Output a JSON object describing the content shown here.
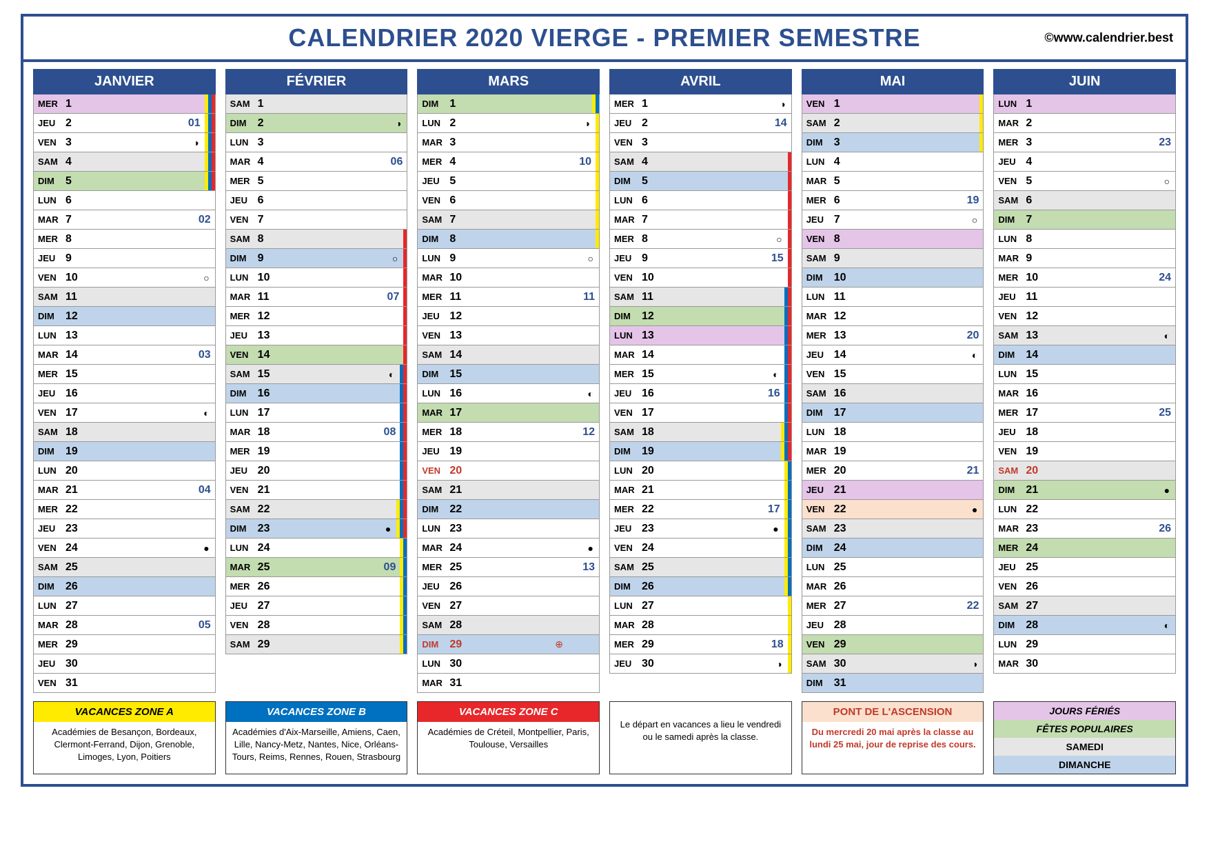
{
  "title": "CALENDRIER 2020 VIERGE - PREMIER SEMESTRE",
  "watermark": "©www.calendrier.best",
  "colors": {
    "frame": "#2d4f8f",
    "sat": "#e6e6e6",
    "sun": "#bfd4ea",
    "ferie": "#e4c5e8",
    "fete": "#c3dcb0",
    "pont": "#fbe0cd",
    "zoneA": "#ffeb00",
    "zoneB": "#0070c0",
    "zoneC": "#e8272a"
  },
  "months": [
    {
      "name": "JANVIER",
      "days": [
        {
          "dw": "MER",
          "n": 1,
          "bg": "ferie",
          "zones": [
            "a",
            "b",
            "c"
          ]
        },
        {
          "dw": "JEU",
          "n": 2,
          "wk": "01",
          "zones": [
            "a",
            "b",
            "c"
          ]
        },
        {
          "dw": "VEN",
          "n": 3,
          "moon": "◑",
          "zones": [
            "a",
            "b",
            "c"
          ]
        },
        {
          "dw": "SAM",
          "n": 4,
          "bg": "sat",
          "zones": [
            "a",
            "b",
            "c"
          ]
        },
        {
          "dw": "DIM",
          "n": 5,
          "bg": "fete",
          "zones": [
            "a",
            "b",
            "c"
          ]
        },
        {
          "dw": "LUN",
          "n": 6
        },
        {
          "dw": "MAR",
          "n": 7,
          "wk": "02"
        },
        {
          "dw": "MER",
          "n": 8
        },
        {
          "dw": "JEU",
          "n": 9
        },
        {
          "dw": "VEN",
          "n": 10,
          "moon": "○"
        },
        {
          "dw": "SAM",
          "n": 11,
          "bg": "sat"
        },
        {
          "dw": "DIM",
          "n": 12,
          "bg": "sun"
        },
        {
          "dw": "LUN",
          "n": 13
        },
        {
          "dw": "MAR",
          "n": 14,
          "wk": "03"
        },
        {
          "dw": "MER",
          "n": 15
        },
        {
          "dw": "JEU",
          "n": 16
        },
        {
          "dw": "VEN",
          "n": 17,
          "moon": "◐"
        },
        {
          "dw": "SAM",
          "n": 18,
          "bg": "sat"
        },
        {
          "dw": "DIM",
          "n": 19,
          "bg": "sun"
        },
        {
          "dw": "LUN",
          "n": 20
        },
        {
          "dw": "MAR",
          "n": 21,
          "wk": "04"
        },
        {
          "dw": "MER",
          "n": 22
        },
        {
          "dw": "JEU",
          "n": 23
        },
        {
          "dw": "VEN",
          "n": 24,
          "moon": "●"
        },
        {
          "dw": "SAM",
          "n": 25,
          "bg": "sat"
        },
        {
          "dw": "DIM",
          "n": 26,
          "bg": "sun"
        },
        {
          "dw": "LUN",
          "n": 27
        },
        {
          "dw": "MAR",
          "n": 28,
          "wk": "05"
        },
        {
          "dw": "MER",
          "n": 29
        },
        {
          "dw": "JEU",
          "n": 30
        },
        {
          "dw": "VEN",
          "n": 31
        }
      ]
    },
    {
      "name": "FÉVRIER",
      "days": [
        {
          "dw": "SAM",
          "n": 1,
          "bg": "sat"
        },
        {
          "dw": "DIM",
          "n": 2,
          "bg": "fete",
          "moon": "◑"
        },
        {
          "dw": "LUN",
          "n": 3
        },
        {
          "dw": "MAR",
          "n": 4,
          "wk": "06"
        },
        {
          "dw": "MER",
          "n": 5
        },
        {
          "dw": "JEU",
          "n": 6
        },
        {
          "dw": "VEN",
          "n": 7
        },
        {
          "dw": "SAM",
          "n": 8,
          "bg": "sat",
          "zones": [
            "c"
          ]
        },
        {
          "dw": "DIM",
          "n": 9,
          "bg": "sun",
          "moon": "○",
          "zones": [
            "c"
          ]
        },
        {
          "dw": "LUN",
          "n": 10,
          "zones": [
            "c"
          ]
        },
        {
          "dw": "MAR",
          "n": 11,
          "wk": "07",
          "zones": [
            "c"
          ]
        },
        {
          "dw": "MER",
          "n": 12,
          "zones": [
            "c"
          ]
        },
        {
          "dw": "JEU",
          "n": 13,
          "zones": [
            "c"
          ]
        },
        {
          "dw": "VEN",
          "n": 14,
          "bg": "fete",
          "zones": [
            "c"
          ]
        },
        {
          "dw": "SAM",
          "n": 15,
          "bg": "sat",
          "moon": "◐",
          "zones": [
            "b",
            "c"
          ]
        },
        {
          "dw": "DIM",
          "n": 16,
          "bg": "sun",
          "zones": [
            "b",
            "c"
          ]
        },
        {
          "dw": "LUN",
          "n": 17,
          "zones": [
            "b",
            "c"
          ]
        },
        {
          "dw": "MAR",
          "n": 18,
          "wk": "08",
          "zones": [
            "b",
            "c"
          ]
        },
        {
          "dw": "MER",
          "n": 19,
          "zones": [
            "b",
            "c"
          ]
        },
        {
          "dw": "JEU",
          "n": 20,
          "zones": [
            "b",
            "c"
          ]
        },
        {
          "dw": "VEN",
          "n": 21,
          "zones": [
            "b",
            "c"
          ]
        },
        {
          "dw": "SAM",
          "n": 22,
          "bg": "sat",
          "zones": [
            "a",
            "b",
            "c"
          ]
        },
        {
          "dw": "DIM",
          "n": 23,
          "bg": "sun",
          "moon": "●",
          "zones": [
            "a",
            "b",
            "c"
          ]
        },
        {
          "dw": "LUN",
          "n": 24,
          "zones": [
            "a",
            "b"
          ]
        },
        {
          "dw": "MAR",
          "n": 25,
          "bg": "fete",
          "wk": "09",
          "zones": [
            "a",
            "b"
          ]
        },
        {
          "dw": "MER",
          "n": 26,
          "zones": [
            "a",
            "b"
          ]
        },
        {
          "dw": "JEU",
          "n": 27,
          "zones": [
            "a",
            "b"
          ]
        },
        {
          "dw": "VEN",
          "n": 28,
          "zones": [
            "a",
            "b"
          ]
        },
        {
          "dw": "SAM",
          "n": 29,
          "bg": "sat",
          "zones": [
            "a",
            "b"
          ]
        }
      ]
    },
    {
      "name": "MARS",
      "days": [
        {
          "dw": "DIM",
          "n": 1,
          "bg": "fete",
          "zones": [
            "a",
            "b"
          ]
        },
        {
          "dw": "LUN",
          "n": 2,
          "moon": "◑",
          "zones": [
            "a"
          ]
        },
        {
          "dw": "MAR",
          "n": 3,
          "zones": [
            "a"
          ]
        },
        {
          "dw": "MER",
          "n": 4,
          "wk": "10",
          "zones": [
            "a"
          ]
        },
        {
          "dw": "JEU",
          "n": 5,
          "zones": [
            "a"
          ]
        },
        {
          "dw": "VEN",
          "n": 6,
          "zones": [
            "a"
          ]
        },
        {
          "dw": "SAM",
          "n": 7,
          "bg": "sat",
          "zones": [
            "a"
          ]
        },
        {
          "dw": "DIM",
          "n": 8,
          "bg": "sun",
          "zones": [
            "a"
          ]
        },
        {
          "dw": "LUN",
          "n": 9,
          "moon": "○"
        },
        {
          "dw": "MAR",
          "n": 10
        },
        {
          "dw": "MER",
          "n": 11,
          "wk": "11"
        },
        {
          "dw": "JEU",
          "n": 12
        },
        {
          "dw": "VEN",
          "n": 13
        },
        {
          "dw": "SAM",
          "n": 14,
          "bg": "sat"
        },
        {
          "dw": "DIM",
          "n": 15,
          "bg": "sun"
        },
        {
          "dw": "LUN",
          "n": 16,
          "moon": "◐"
        },
        {
          "dw": "MAR",
          "n": 17,
          "bg": "fete"
        },
        {
          "dw": "MER",
          "n": 18,
          "wk": "12"
        },
        {
          "dw": "JEU",
          "n": 19
        },
        {
          "dw": "VEN",
          "n": 20,
          "red": true
        },
        {
          "dw": "SAM",
          "n": 21,
          "bg": "sat"
        },
        {
          "dw": "DIM",
          "n": 22,
          "bg": "sun"
        },
        {
          "dw": "LUN",
          "n": 23
        },
        {
          "dw": "MAR",
          "n": 24,
          "moon": "●"
        },
        {
          "dw": "MER",
          "n": 25,
          "wk": "13"
        },
        {
          "dw": "JEU",
          "n": 26
        },
        {
          "dw": "VEN",
          "n": 27
        },
        {
          "dw": "SAM",
          "n": 28,
          "bg": "sat"
        },
        {
          "dw": "DIM",
          "n": 29,
          "bg": "sun",
          "red": true,
          "clock": "⊕"
        },
        {
          "dw": "LUN",
          "n": 30
        },
        {
          "dw": "MAR",
          "n": 31
        }
      ]
    },
    {
      "name": "AVRIL",
      "days": [
        {
          "dw": "MER",
          "n": 1,
          "moon": "◑"
        },
        {
          "dw": "JEU",
          "n": 2,
          "wk": "14"
        },
        {
          "dw": "VEN",
          "n": 3
        },
        {
          "dw": "SAM",
          "n": 4,
          "bg": "sat",
          "zones": [
            "c"
          ]
        },
        {
          "dw": "DIM",
          "n": 5,
          "bg": "sun",
          "zones": [
            "c"
          ]
        },
        {
          "dw": "LUN",
          "n": 6,
          "zones": [
            "c"
          ]
        },
        {
          "dw": "MAR",
          "n": 7,
          "zones": [
            "c"
          ]
        },
        {
          "dw": "MER",
          "n": 8,
          "moon": "○",
          "zones": [
            "c"
          ]
        },
        {
          "dw": "JEU",
          "n": 9,
          "wk": "15",
          "zones": [
            "c"
          ]
        },
        {
          "dw": "VEN",
          "n": 10,
          "zones": [
            "c"
          ]
        },
        {
          "dw": "SAM",
          "n": 11,
          "bg": "sat",
          "zones": [
            "b",
            "c"
          ]
        },
        {
          "dw": "DIM",
          "n": 12,
          "bg": "fete",
          "zones": [
            "b",
            "c"
          ]
        },
        {
          "dw": "LUN",
          "n": 13,
          "bg": "ferie",
          "zones": [
            "b",
            "c"
          ]
        },
        {
          "dw": "MAR",
          "n": 14,
          "zones": [
            "b",
            "c"
          ]
        },
        {
          "dw": "MER",
          "n": 15,
          "moon": "◐",
          "zones": [
            "b",
            "c"
          ]
        },
        {
          "dw": "JEU",
          "n": 16,
          "wk": "16",
          "zones": [
            "b",
            "c"
          ]
        },
        {
          "dw": "VEN",
          "n": 17,
          "zones": [
            "b",
            "c"
          ]
        },
        {
          "dw": "SAM",
          "n": 18,
          "bg": "sat",
          "zones": [
            "a",
            "b",
            "c"
          ]
        },
        {
          "dw": "DIM",
          "n": 19,
          "bg": "sun",
          "zones": [
            "a",
            "b",
            "c"
          ]
        },
        {
          "dw": "LUN",
          "n": 20,
          "zones": [
            "a",
            "b"
          ]
        },
        {
          "dw": "MAR",
          "n": 21,
          "zones": [
            "a",
            "b"
          ]
        },
        {
          "dw": "MER",
          "n": 22,
          "wk": "17",
          "zones": [
            "a",
            "b"
          ]
        },
        {
          "dw": "JEU",
          "n": 23,
          "moon": "●",
          "zones": [
            "a",
            "b"
          ]
        },
        {
          "dw": "VEN",
          "n": 24,
          "zones": [
            "a",
            "b"
          ]
        },
        {
          "dw": "SAM",
          "n": 25,
          "bg": "sat",
          "zones": [
            "a",
            "b"
          ]
        },
        {
          "dw": "DIM",
          "n": 26,
          "bg": "sun",
          "zones": [
            "a",
            "b"
          ]
        },
        {
          "dw": "LUN",
          "n": 27,
          "zones": [
            "a"
          ]
        },
        {
          "dw": "MAR",
          "n": 28,
          "zones": [
            "a"
          ]
        },
        {
          "dw": "MER",
          "n": 29,
          "wk": "18",
          "zones": [
            "a"
          ]
        },
        {
          "dw": "JEU",
          "n": 30,
          "moon": "◑",
          "zones": [
            "a"
          ]
        }
      ]
    },
    {
      "name": "MAI",
      "days": [
        {
          "dw": "VEN",
          "n": 1,
          "bg": "ferie",
          "zones": [
            "a"
          ]
        },
        {
          "dw": "SAM",
          "n": 2,
          "bg": "sat",
          "zones": [
            "a"
          ]
        },
        {
          "dw": "DIM",
          "n": 3,
          "bg": "sun",
          "zones": [
            "a"
          ]
        },
        {
          "dw": "LUN",
          "n": 4
        },
        {
          "dw": "MAR",
          "n": 5
        },
        {
          "dw": "MER",
          "n": 6,
          "wk": "19"
        },
        {
          "dw": "JEU",
          "n": 7,
          "moon": "○"
        },
        {
          "dw": "VEN",
          "n": 8,
          "bg": "ferie"
        },
        {
          "dw": "SAM",
          "n": 9,
          "bg": "sat"
        },
        {
          "dw": "DIM",
          "n": 10,
          "bg": "sun"
        },
        {
          "dw": "LUN",
          "n": 11
        },
        {
          "dw": "MAR",
          "n": 12
        },
        {
          "dw": "MER",
          "n": 13,
          "wk": "20"
        },
        {
          "dw": "JEU",
          "n": 14,
          "moon": "◐"
        },
        {
          "dw": "VEN",
          "n": 15
        },
        {
          "dw": "SAM",
          "n": 16,
          "bg": "sat"
        },
        {
          "dw": "DIM",
          "n": 17,
          "bg": "sun"
        },
        {
          "dw": "LUN",
          "n": 18
        },
        {
          "dw": "MAR",
          "n": 19
        },
        {
          "dw": "MER",
          "n": 20,
          "wk": "21"
        },
        {
          "dw": "JEU",
          "n": 21,
          "bg": "ferie"
        },
        {
          "dw": "VEN",
          "n": 22,
          "bg": "pont",
          "moon": "●"
        },
        {
          "dw": "SAM",
          "n": 23,
          "bg": "sat"
        },
        {
          "dw": "DIM",
          "n": 24,
          "bg": "sun"
        },
        {
          "dw": "LUN",
          "n": 25
        },
        {
          "dw": "MAR",
          "n": 26
        },
        {
          "dw": "MER",
          "n": 27,
          "wk": "22"
        },
        {
          "dw": "JEU",
          "n": 28
        },
        {
          "dw": "VEN",
          "n": 29,
          "bg": "fete"
        },
        {
          "dw": "SAM",
          "n": 30,
          "bg": "sat",
          "moon": "◑"
        },
        {
          "dw": "DIM",
          "n": 31,
          "bg": "sun"
        }
      ]
    },
    {
      "name": "JUIN",
      "days": [
        {
          "dw": "LUN",
          "n": 1,
          "bg": "ferie"
        },
        {
          "dw": "MAR",
          "n": 2
        },
        {
          "dw": "MER",
          "n": 3,
          "wk": "23"
        },
        {
          "dw": "JEU",
          "n": 4
        },
        {
          "dw": "VEN",
          "n": 5,
          "moon": "○"
        },
        {
          "dw": "SAM",
          "n": 6,
          "bg": "sat"
        },
        {
          "dw": "DIM",
          "n": 7,
          "bg": "fete"
        },
        {
          "dw": "LUN",
          "n": 8
        },
        {
          "dw": "MAR",
          "n": 9
        },
        {
          "dw": "MER",
          "n": 10,
          "wk": "24"
        },
        {
          "dw": "JEU",
          "n": 11
        },
        {
          "dw": "VEN",
          "n": 12
        },
        {
          "dw": "SAM",
          "n": 13,
          "bg": "sat",
          "moon": "◐"
        },
        {
          "dw": "DIM",
          "n": 14,
          "bg": "sun"
        },
        {
          "dw": "LUN",
          "n": 15
        },
        {
          "dw": "MAR",
          "n": 16
        },
        {
          "dw": "MER",
          "n": 17,
          "wk": "25"
        },
        {
          "dw": "JEU",
          "n": 18
        },
        {
          "dw": "VEN",
          "n": 19
        },
        {
          "dw": "SAM",
          "n": 20,
          "bg": "sat",
          "red": true
        },
        {
          "dw": "DIM",
          "n": 21,
          "bg": "fete",
          "moon": "●"
        },
        {
          "dw": "LUN",
          "n": 22
        },
        {
          "dw": "MAR",
          "n": 23,
          "wk": "26"
        },
        {
          "dw": "MER",
          "n": 24,
          "bg": "fete"
        },
        {
          "dw": "JEU",
          "n": 25
        },
        {
          "dw": "VEN",
          "n": 26
        },
        {
          "dw": "SAM",
          "n": 27,
          "bg": "sat"
        },
        {
          "dw": "DIM",
          "n": 28,
          "bg": "sun",
          "moon": "◐"
        },
        {
          "dw": "LUN",
          "n": 29
        },
        {
          "dw": "MAR",
          "n": 30
        }
      ]
    }
  ],
  "legend": {
    "zoneA": {
      "title": "VACANCES ZONE A",
      "body": "Académies de Besançon, Bordeaux, Clermont-Ferrand, Dijon, Grenoble, Limoges, Lyon, Poitiers"
    },
    "zoneB": {
      "title": "VACANCES ZONE B",
      "body": "Académies d'Aix-Marseille, Amiens, Caen, Lille, Nancy-Metz, Nantes, Nice, Orléans-Tours, Reims, Rennes, Rouen, Strasbourg"
    },
    "zoneC": {
      "title": "VACANCES ZONE C",
      "body": "Académies de Créteil, Montpellier, Paris, Toulouse, Versailles"
    },
    "note": "Le départ en vacances a lieu le vendredi ou le samedi après la classe.",
    "pont": {
      "title": "PONT DE L'ASCENSION",
      "body": "Du mercredi 20 mai après la classe au lundi 25 mai, jour de reprise des cours."
    },
    "jf": {
      "s1": "JOURS FÉRIÉS",
      "s2": "FÊTES POPULAIRES",
      "s3": "SAMEDI",
      "s4": "DIMANCHE"
    }
  }
}
